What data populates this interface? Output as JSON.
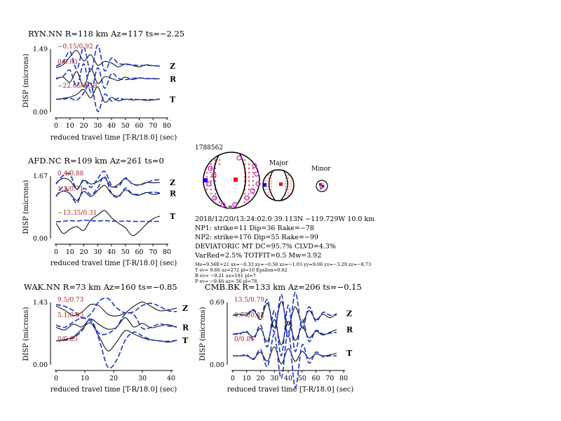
{
  "chart_data": [
    {
      "type": "line",
      "id": "ryn",
      "title": "RYN.NN R=118 km Az=117 ts=−2.25",
      "xlabel": "reduced travel time [T-R/18.0] (sec)",
      "ylabel": "DISP (microns)",
      "ytick_top": "1.49",
      "ytick_bottom": "0.00",
      "xlim": [
        0,
        80
      ],
      "xticks": [
        "0",
        "10",
        "20",
        "30",
        "40",
        "50",
        "60",
        "70",
        "80"
      ],
      "traces": [
        {
          "component": "Z",
          "annotation": "−0.15/0.92",
          "data_x": [
            0,
            5,
            10,
            15,
            20,
            25,
            30,
            35,
            40,
            45,
            50,
            55,
            60,
            65,
            70,
            75
          ],
          "data_y": [
            1.05,
            1.12,
            1.31,
            1.46,
            1.21,
            1.36,
            1.11,
            1.2,
            1.16,
            1.07,
            1.14,
            1.11,
            1.07,
            1.12,
            1.1,
            1.09
          ],
          "synthetic_y": [
            1.09,
            1.18,
            1.43,
            1.02,
            1.53,
            0.96,
            1.58,
            0.98,
            1.28,
            1.15,
            1.13,
            1.12,
            1.1,
            1.11,
            1.1,
            1.09
          ]
        },
        {
          "component": "R",
          "annotation": "0/0.63",
          "data_x": [
            0,
            5,
            10,
            15,
            20,
            25,
            30,
            35,
            40,
            45,
            50,
            55,
            60,
            65,
            70,
            75
          ],
          "data_y": [
            0.78,
            0.83,
            0.71,
            0.96,
            0.6,
            1.03,
            0.68,
            0.84,
            0.8,
            0.75,
            0.83,
            0.77,
            0.81,
            0.79,
            0.8,
            0.79
          ],
          "synthetic_y": [
            0.8,
            0.85,
            0.99,
            0.61,
            1.14,
            0.47,
            1.05,
            0.57,
            0.91,
            0.8,
            0.77,
            0.8,
            0.81,
            0.8,
            0.79,
            0.79
          ]
        },
        {
          "component": "T",
          "annotation": "−22.65/0.39",
          "data_x": [
            0,
            5,
            10,
            15,
            20,
            25,
            30,
            35,
            40,
            45,
            50,
            55,
            60,
            65,
            70,
            75
          ],
          "data_y": [
            0.3,
            0.33,
            0.36,
            0.42,
            0.54,
            0.34,
            0.6,
            0.24,
            0.35,
            0.27,
            0.31,
            0.29,
            0.3,
            0.28,
            0.29,
            0.31
          ],
          "synthetic_y": [
            0.31,
            0.31,
            0.33,
            0.29,
            0.46,
            0.68,
            0.02,
            0.42,
            0.27,
            0.33,
            0.3,
            0.31,
            0.3,
            0.3,
            0.3,
            0.31
          ]
        }
      ]
    },
    {
      "type": "line",
      "id": "afd",
      "title": "AFD.NC R=109 km Az=261 ts=0",
      "xlabel": "reduced travel time [T-R/18.0] (sec)",
      "ylabel": "DISP (microns)",
      "ytick_top": "1.67",
      "ytick_bottom": "0.00",
      "xlim": [
        0,
        80
      ],
      "xticks": [
        "0",
        "10",
        "20",
        "30",
        "40",
        "50",
        "60",
        "70",
        "80"
      ],
      "traces": [
        {
          "component": "Z",
          "annotation": "0.4/0.88",
          "data_x": [
            0,
            5,
            10,
            15,
            20,
            25,
            30,
            35,
            40,
            45,
            50,
            55,
            60,
            65,
            70,
            75
          ],
          "data_y": [
            1.49,
            1.61,
            1.55,
            1.33,
            1.55,
            1.46,
            1.52,
            1.62,
            1.38,
            1.45,
            1.6,
            1.47,
            1.44,
            1.5,
            1.49,
            1.5
          ],
          "synthetic_y": [
            1.46,
            1.68,
            1.72,
            1.32,
            1.58,
            1.37,
            1.6,
            1.8,
            1.43,
            1.39,
            1.62,
            1.46,
            1.43,
            1.49,
            1.56,
            1.57
          ]
        },
        {
          "component": "R",
          "annotation": "1.2/0.71",
          "data_x": [
            0,
            5,
            10,
            15,
            20,
            25,
            30,
            35,
            40,
            45,
            50,
            55,
            60,
            65,
            70,
            75
          ],
          "data_y": [
            1.15,
            1.27,
            1.2,
            1.02,
            1.26,
            1.12,
            1.28,
            1.42,
            1.2,
            1.14,
            1.3,
            1.19,
            1.16,
            1.23,
            1.18,
            1.21
          ],
          "synthetic_y": [
            1.12,
            1.38,
            1.21,
            0.95,
            1.34,
            1.17,
            1.35,
            1.66,
            1.21,
            1.11,
            1.35,
            1.2,
            1.18,
            1.22,
            1.24,
            1.22
          ]
        },
        {
          "component": "T",
          "annotation": "−13.35/0.31",
          "data_x": [
            0,
            5,
            10,
            15,
            20,
            25,
            30,
            35,
            40,
            45,
            50,
            55,
            60,
            65,
            70,
            75
          ],
          "data_y": [
            0.41,
            0.14,
            0.25,
            0.32,
            0.22,
            0.5,
            0.63,
            0.75,
            0.56,
            0.41,
            0.29,
            0.08,
            0.19,
            0.38,
            0.53,
            0.6
          ],
          "synthetic_y": [
            0.45,
            0.46,
            0.48,
            0.47,
            0.49,
            0.48,
            0.47,
            0.48,
            0.47,
            0.46,
            0.47,
            0.46,
            0.46,
            0.46,
            0.46,
            0.46
          ]
        }
      ]
    },
    {
      "type": "line",
      "id": "wak",
      "title": "WAK.NN R=73 km Az=160 ts=−0.85",
      "xlabel": "reduced travel time [T-R/18.0] (sec)",
      "ylabel": "DISP (microns)",
      "ytick_top": "1.43",
      "ytick_bottom": "0.00",
      "xlim": [
        0,
        40
      ],
      "xticks": [
        "0",
        "10",
        "20",
        "30",
        "40"
      ],
      "traces": [
        {
          "component": "Z",
          "annotation": "9.5/0.73",
          "data_x": [
            0,
            3,
            6,
            9,
            12,
            15,
            18,
            21,
            24,
            27,
            30,
            33,
            36,
            39,
            42
          ],
          "data_y": [
            1.35,
            1.25,
            1.13,
            1.21,
            1.38,
            1.35,
            1.16,
            1.12,
            1.19,
            1.34,
            1.44,
            1.34,
            1.24,
            1.26,
            1.3
          ],
          "synthetic_y": [
            1.38,
            1.34,
            1.24,
            1.08,
            1.16,
            1.46,
            1.52,
            1.31,
            1.19,
            1.22,
            1.36,
            1.41,
            1.34,
            1.24,
            1.22
          ]
        },
        {
          "component": "R",
          "annotation": "5.1/0.93",
          "data_x": [
            0,
            3,
            6,
            9,
            12,
            15,
            18,
            21,
            24,
            27,
            30,
            33,
            36,
            39,
            42
          ],
          "data_y": [
            0.86,
            0.8,
            0.93,
            0.87,
            1.05,
            0.92,
            0.82,
            0.86,
            1.08,
            0.87,
            0.95,
            0.85,
            0.89,
            0.92,
            0.86
          ],
          "synthetic_y": [
            0.91,
            0.86,
            0.98,
            1.07,
            1.0,
            0.72,
            0.72,
            0.86,
            1.16,
            1.15,
            0.84,
            0.86,
            0.94,
            0.89,
            0.87
          ]
        },
        {
          "component": "T",
          "annotation": "0/0.85",
          "data_x": [
            0,
            3,
            6,
            9,
            12,
            15,
            18,
            21,
            24,
            27,
            30,
            33,
            36,
            39,
            42
          ],
          "data_y": [
            0.55,
            0.58,
            0.64,
            0.82,
            0.96,
            0.64,
            0.32,
            0.52,
            0.78,
            0.71,
            0.62,
            0.57,
            0.55,
            0.52,
            0.56
          ],
          "synthetic_y": [
            0.55,
            0.56,
            0.62,
            0.78,
            1.05,
            0.57,
            -0.05,
            0.1,
            0.56,
            0.75,
            0.66,
            0.58,
            0.55,
            0.54,
            0.56
          ]
        }
      ]
    },
    {
      "type": "line",
      "id": "cmb",
      "title": "CMB.BK R=133 km Az=206 ts=−0.15",
      "xlabel": "reduced travel time [T-R/18.0] (sec)",
      "ylabel": "DISP (microns)",
      "ytick_top": "0.69",
      "ytick_bottom": "0.00",
      "xlim": [
        0,
        80
      ],
      "xticks": [
        "0",
        "10",
        "20",
        "30",
        "40",
        "50",
        "60",
        "70",
        "80"
      ],
      "traces": [
        {
          "component": "Z",
          "annotation": "13.5/0.79",
          "data_x": [
            0,
            5,
            10,
            15,
            20,
            25,
            30,
            35,
            40,
            45,
            50,
            55,
            60,
            65,
            70,
            75
          ],
          "data_y": [
            0.55,
            0.56,
            0.55,
            0.6,
            0.5,
            0.68,
            0.41,
            0.7,
            0.44,
            0.64,
            0.47,
            0.6,
            0.5,
            0.56,
            0.52,
            0.57
          ],
          "synthetic_y": [
            0.55,
            0.55,
            0.56,
            0.61,
            0.52,
            0.72,
            0.36,
            0.78,
            0.31,
            0.8,
            0.4,
            0.64,
            0.48,
            0.58,
            0.55,
            0.55
          ]
        },
        {
          "component": "R",
          "annotation": "0.75/0.82",
          "data_x": [
            0,
            5,
            10,
            15,
            20,
            25,
            30,
            35,
            40,
            45,
            50,
            55,
            60,
            65,
            70,
            75
          ],
          "data_y": [
            0.34,
            0.35,
            0.36,
            0.31,
            0.4,
            0.26,
            0.5,
            0.22,
            0.48,
            0.27,
            0.42,
            0.3,
            0.37,
            0.33,
            0.36,
            0.39
          ],
          "synthetic_y": [
            0.34,
            0.34,
            0.37,
            0.28,
            0.44,
            0.2,
            0.6,
            0.1,
            0.66,
            0.15,
            0.5,
            0.26,
            0.38,
            0.34,
            0.35,
            0.36
          ]
        },
        {
          "component": "T",
          "annotation": "0/0.81",
          "data_x": [
            0,
            5,
            10,
            15,
            20,
            25,
            30,
            35,
            40,
            45,
            50,
            55,
            60,
            65,
            70,
            75
          ],
          "data_y": [
            0.1,
            0.1,
            0.1,
            0.07,
            0.14,
            0.04,
            0.2,
            0.01,
            0.18,
            0.04,
            0.15,
            0.07,
            0.12,
            0.1,
            0.11,
            0.13
          ],
          "synthetic_y": [
            0.1,
            0.1,
            0.11,
            0.06,
            0.17,
            -0.02,
            0.34,
            -0.15,
            0.38,
            -0.25,
            0.22,
            0.02,
            0.14,
            0.09,
            0.1,
            0.1
          ]
        }
      ]
    }
  ],
  "mechanism": {
    "event_id": "1788562",
    "major_label": "Major",
    "minor_label": "Minor",
    "info_lines": [
      "2018/12/20/13:24:02.0 39.113N −119.729W 10.0 km",
      "NP1: strike=11 Dip=36 Rake=−78",
      "NP2: strike=176 Dip=55 Rake=−99",
      "DEVIATORIC MT DC=95.7% CLVD=4.3%",
      "VarRed=2.5% TOTFIT=0.5 Mw=3.92"
    ],
    "small_lines": [
      "Mo=9.56E+21 xx=−0.33 xy=−0.56 xz=−1.03 yy=9.06 yz=−3.29 zz=−8.73",
      "T ev= 9.66 az=272 pl=10 Epsilon=0.02",
      "B ev= −0.21 az=181 pl=7",
      "P ev= −9.46 az= 56 pl=78"
    ],
    "colors": {
      "data_trace": "#000000",
      "synthetic_trace": "#1a33cc",
      "annotation": "#a52a2a",
      "t_axis_marker": "#ff0000",
      "p_axis_marker": "#0000ff",
      "polarity_circle": "#cc33cc",
      "dots": "#ff6060"
    }
  }
}
